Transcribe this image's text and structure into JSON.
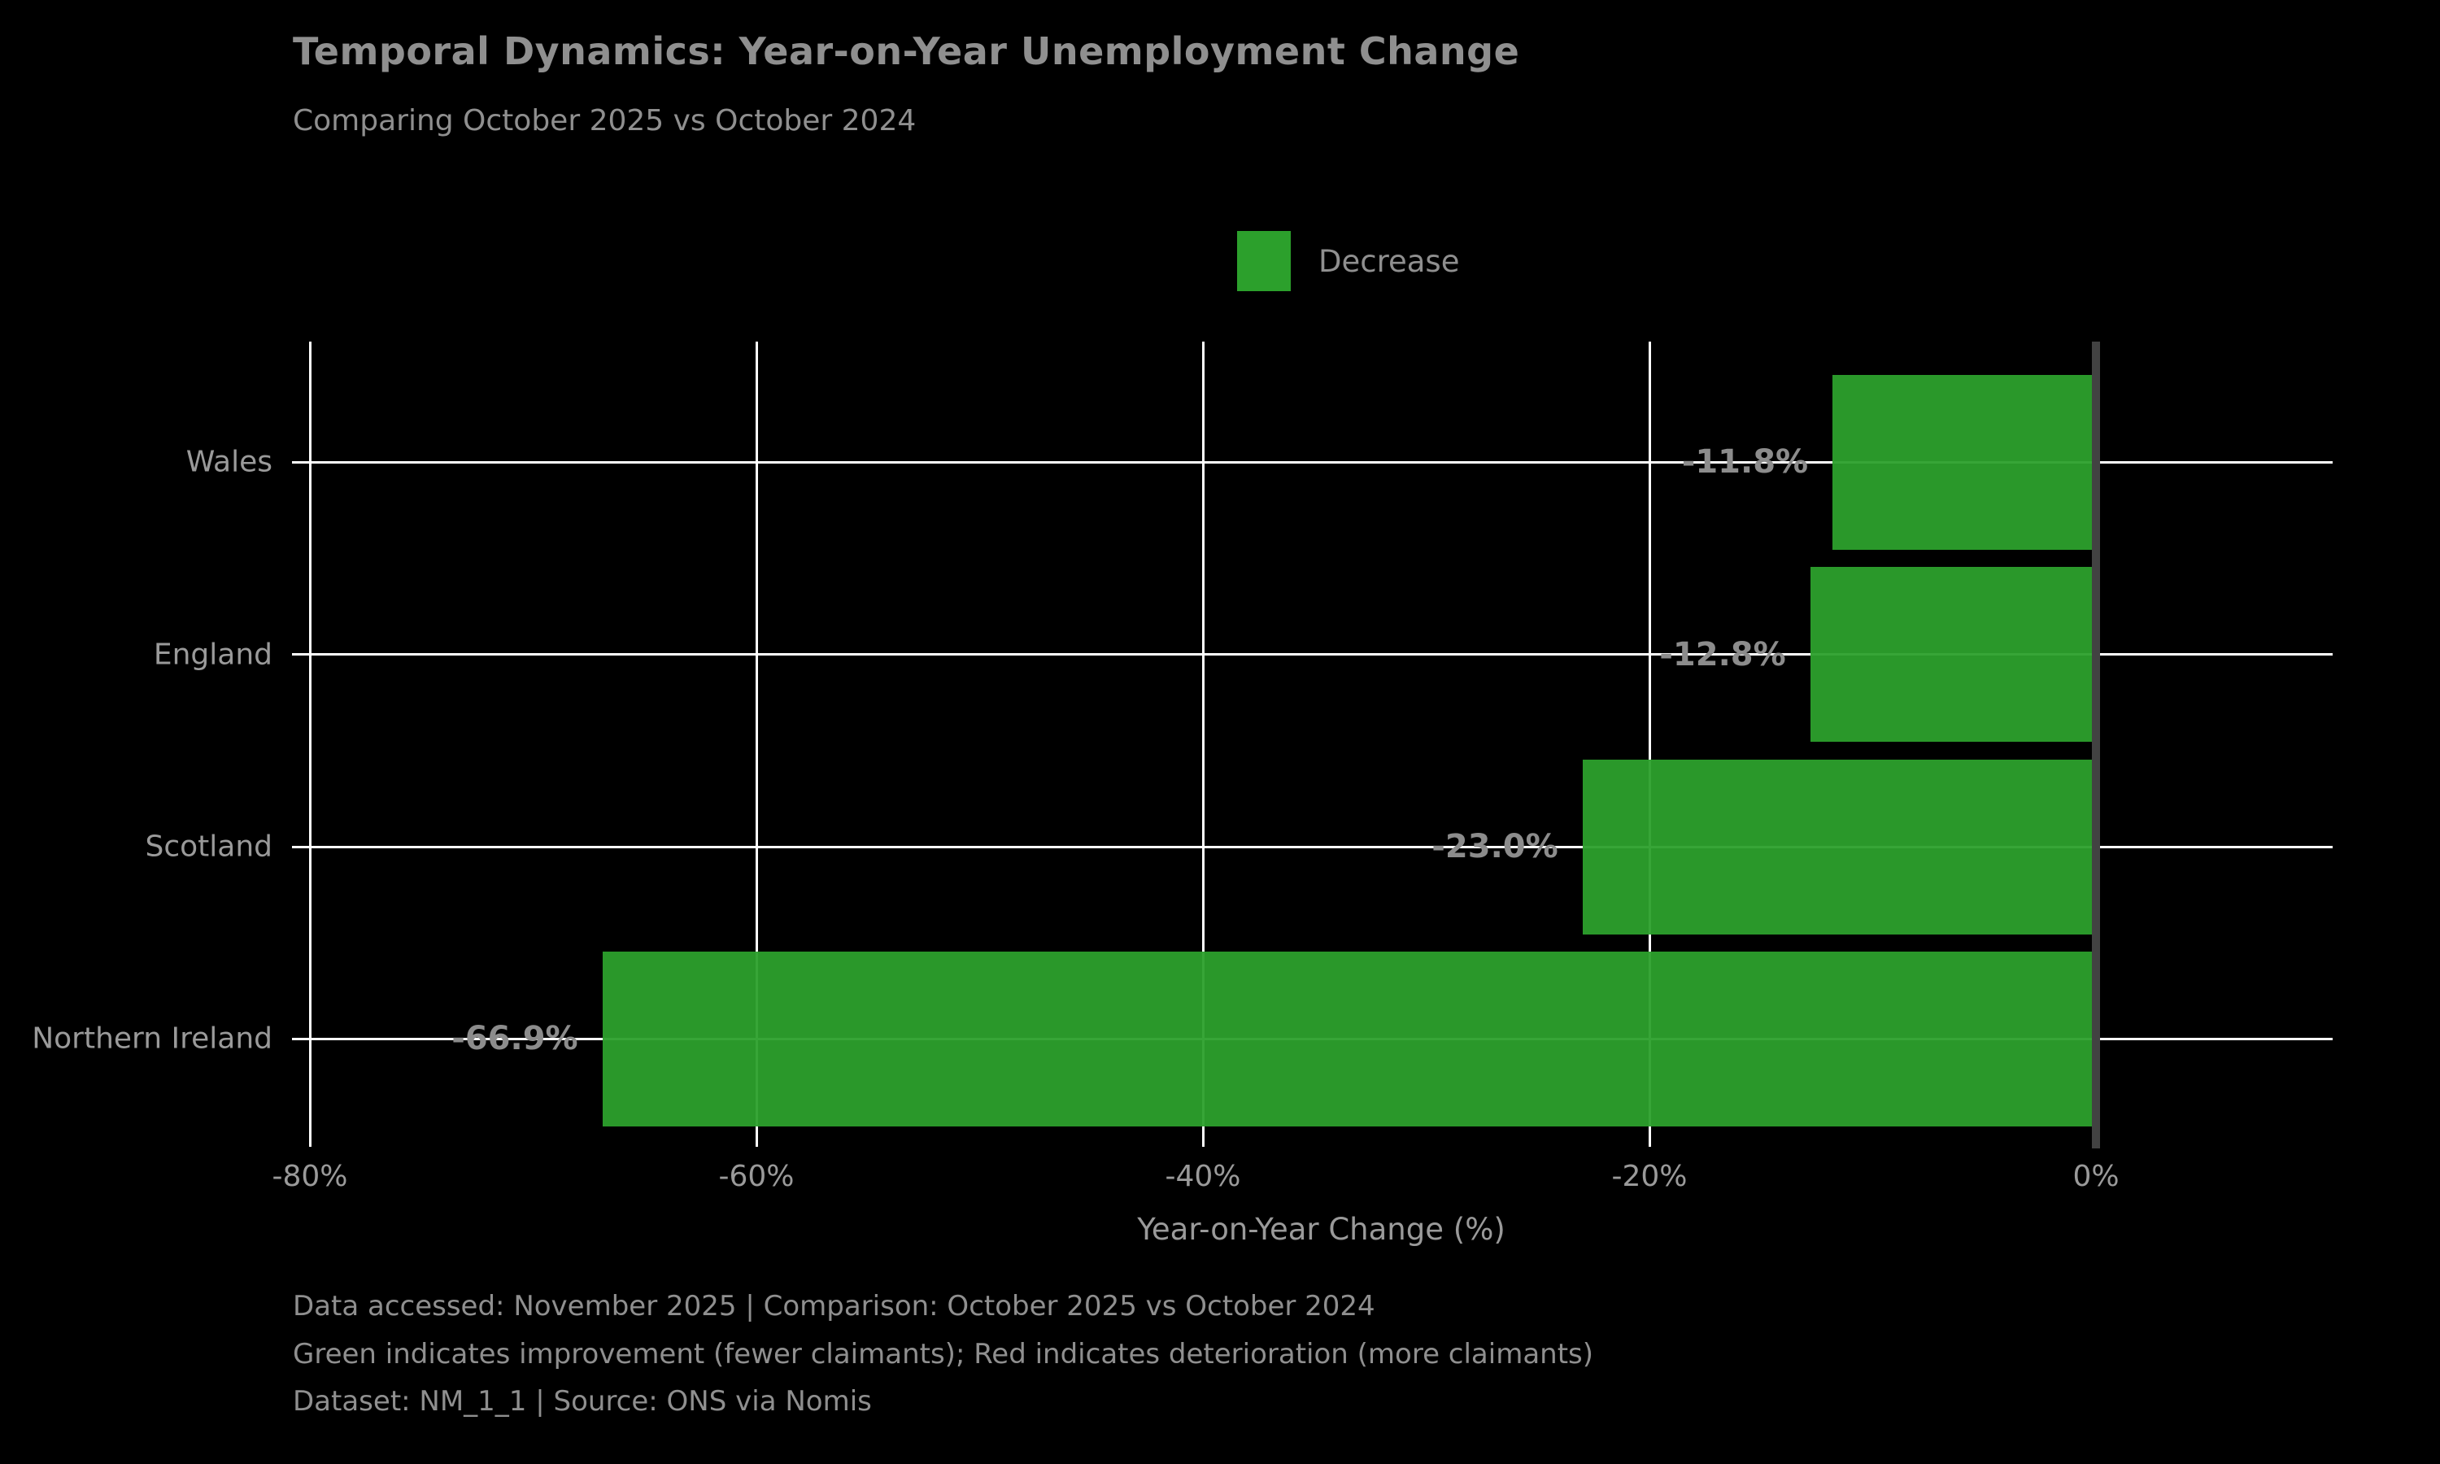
{
  "title": "Temporal Dynamics: Year-on-Year Unemployment Change",
  "subtitle": "Comparing October 2025 vs October 2024",
  "chart_data": {
    "type": "bar",
    "orientation": "horizontal",
    "title": "Temporal Dynamics: Year-on-Year Unemployment Change",
    "subtitle": "Comparing October 2025 vs October 2024",
    "categories": [
      "Wales",
      "England",
      "Scotland",
      "Northern Ireland"
    ],
    "values": [
      -11.8,
      -12.8,
      -23.0,
      -66.9
    ],
    "value_labels": [
      "-11.8%",
      "-12.8%",
      "-23.0%",
      "-66.9%"
    ],
    "xlabel": "Year-on-Year Change (%)",
    "ylabel": "",
    "xlim": [
      -80,
      10.6
    ],
    "x_tick_values": [
      -80,
      -60,
      -40,
      -20,
      0
    ],
    "x_tick_labels": [
      "-80%",
      "-60%",
      "-40%",
      "-20%",
      "0%"
    ],
    "grid": true,
    "legend_position": "upper center",
    "legend": [
      {
        "label": "Decrease",
        "color": "#2ca02c"
      }
    ],
    "bar_color": "#2ca02c",
    "zero_line_color": "#424242",
    "grid_color": "#ffffff",
    "background_color": "#000000",
    "text_color": "#8f8f8f"
  },
  "footer": {
    "line1": "Data accessed: November 2025 | Comparison: October 2025 vs October 2024",
    "line2": "Green indicates improvement (fewer claimants); Red indicates deterioration (more claimants)",
    "line3": "Dataset: NM_1_1 | Source: ONS via Nomis"
  }
}
